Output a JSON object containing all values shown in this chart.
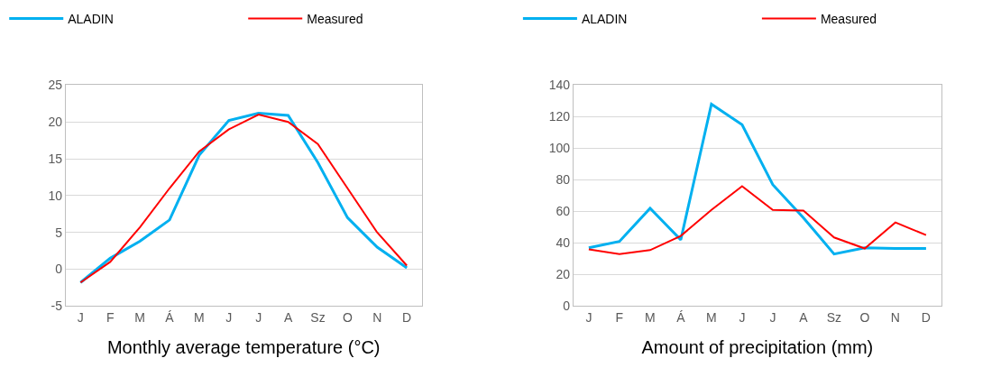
{
  "chart_data": [
    {
      "type": "line",
      "xlabel": "Monthly average temperature (°C)",
      "categories": [
        "J",
        "F",
        "M",
        "Á",
        "M",
        "J",
        "J",
        "A",
        "Sz",
        "O",
        "N",
        "D"
      ],
      "series": [
        {
          "name": "ALADIN",
          "color": "#00b0f0",
          "values": [
            -1.8,
            1.5,
            3.8,
            6.7,
            15.5,
            20.2,
            21.2,
            20.9,
            14.5,
            7,
            3,
            0.2
          ]
        },
        {
          "name": "Measured",
          "color": "#ff0000",
          "values": [
            -1.8,
            1,
            5.7,
            11,
            16,
            19,
            21,
            20,
            17,
            11,
            5,
            0.5
          ]
        }
      ],
      "ylim": [
        -5,
        25
      ],
      "yticks": [
        -5,
        0,
        5,
        10,
        15,
        20,
        25
      ],
      "grid": "y",
      "legend": "top",
      "line_style": "solid",
      "marker": "none"
    },
    {
      "type": "line",
      "xlabel": "Amount of precipitation (mm)",
      "categories": [
        "J",
        "F",
        "M",
        "Á",
        "M",
        "J",
        "J",
        "A",
        "Sz",
        "O",
        "N",
        "D"
      ],
      "series": [
        {
          "name": "ALADIN",
          "color": "#00b0f0",
          "values": [
            37,
            41,
            62,
            42,
            128,
            115,
            77,
            56,
            33,
            37,
            36.5,
            36.5
          ]
        },
        {
          "name": "Measured",
          "color": "#ff0000",
          "values": [
            36,
            33,
            35.5,
            44.5,
            61,
            76,
            61,
            60.5,
            43.5,
            36.5,
            53,
            45
          ]
        }
      ],
      "ylim": [
        0,
        140
      ],
      "yticks": [
        0,
        20,
        40,
        60,
        80,
        100,
        120,
        140
      ],
      "grid": "y",
      "legend": "top",
      "line_style": "solid",
      "marker": "none"
    }
  ]
}
